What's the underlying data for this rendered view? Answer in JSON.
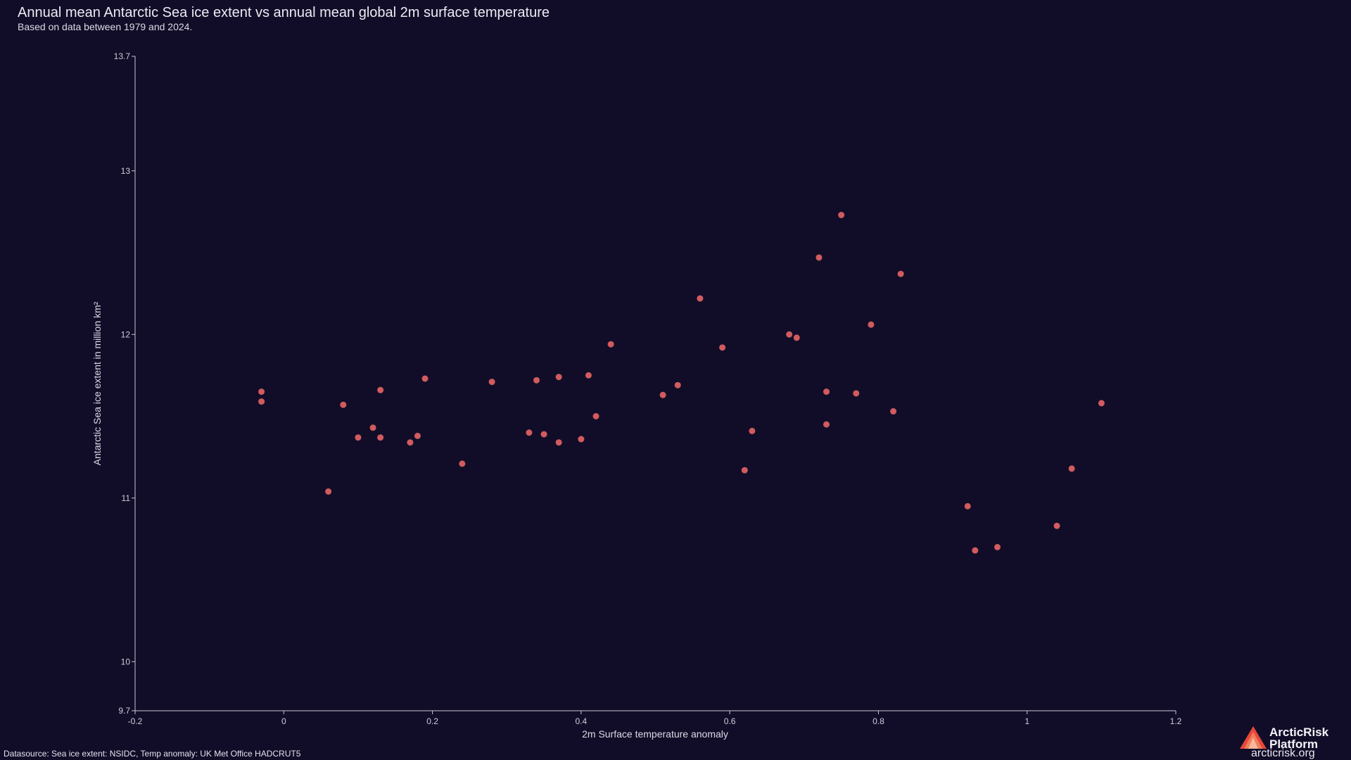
{
  "page": {
    "datasource": "Datasource: Sea ice extent: NSIDC, Temp anomaly: UK Met Office HADCRUT5",
    "brand": {
      "name_line1": "ArcticRisk",
      "name_line2": "Platform",
      "url": "arcticrisk.org",
      "logo_icon": "arcticrisk-triangle-logo-icon"
    },
    "colors": {
      "background": "#110d28",
      "point": "#d15b5e",
      "axis": "#c8c6d4"
    }
  },
  "chart_data": {
    "type": "scatter",
    "title": "Annual mean Antarctic Sea ice extent vs annual mean global 2m surface temperature",
    "subtitle": "Based on data between 1979 and 2024.",
    "xlabel": "2m Surface temperature anomaly",
    "ylabel": "Antarctic Sea ice extent in million km²",
    "xlim": [
      -0.2,
      1.2
    ],
    "ylim": [
      9.7,
      13.7
    ],
    "x_ticks": [
      -0.2,
      0,
      0.2,
      0.4,
      0.6,
      0.8,
      1,
      1.2
    ],
    "y_ticks": [
      9.7,
      10,
      11,
      12,
      13,
      13.7
    ],
    "grid": false,
    "legend": "none",
    "points": [
      {
        "x": -0.03,
        "y": 11.65
      },
      {
        "x": -0.03,
        "y": 11.59
      },
      {
        "x": 0.06,
        "y": 11.04
      },
      {
        "x": 0.08,
        "y": 11.57
      },
      {
        "x": 0.1,
        "y": 11.37
      },
      {
        "x": 0.12,
        "y": 11.43
      },
      {
        "x": 0.13,
        "y": 11.66
      },
      {
        "x": 0.13,
        "y": 11.37
      },
      {
        "x": 0.17,
        "y": 11.34
      },
      {
        "x": 0.18,
        "y": 11.38
      },
      {
        "x": 0.19,
        "y": 11.73
      },
      {
        "x": 0.24,
        "y": 11.21
      },
      {
        "x": 0.28,
        "y": 11.71
      },
      {
        "x": 0.33,
        "y": 11.4
      },
      {
        "x": 0.34,
        "y": 11.72
      },
      {
        "x": 0.35,
        "y": 11.39
      },
      {
        "x": 0.37,
        "y": 11.74
      },
      {
        "x": 0.37,
        "y": 11.34
      },
      {
        "x": 0.4,
        "y": 11.36
      },
      {
        "x": 0.41,
        "y": 11.75
      },
      {
        "x": 0.42,
        "y": 11.5
      },
      {
        "x": 0.44,
        "y": 11.94
      },
      {
        "x": 0.51,
        "y": 11.63
      },
      {
        "x": 0.53,
        "y": 11.69
      },
      {
        "x": 0.56,
        "y": 12.22
      },
      {
        "x": 0.59,
        "y": 11.92
      },
      {
        "x": 0.62,
        "y": 11.17
      },
      {
        "x": 0.63,
        "y": 11.41
      },
      {
        "x": 0.68,
        "y": 12.0
      },
      {
        "x": 0.69,
        "y": 11.98
      },
      {
        "x": 0.72,
        "y": 12.47
      },
      {
        "x": 0.73,
        "y": 11.65
      },
      {
        "x": 0.73,
        "y": 11.45
      },
      {
        "x": 0.75,
        "y": 12.73
      },
      {
        "x": 0.77,
        "y": 11.64
      },
      {
        "x": 0.79,
        "y": 12.06
      },
      {
        "x": 0.82,
        "y": 11.53
      },
      {
        "x": 0.83,
        "y": 12.37
      },
      {
        "x": 0.92,
        "y": 10.95
      },
      {
        "x": 0.93,
        "y": 10.68
      },
      {
        "x": 0.96,
        "y": 10.7
      },
      {
        "x": 1.04,
        "y": 10.83
      },
      {
        "x": 1.06,
        "y": 11.18
      },
      {
        "x": 1.1,
        "y": 11.58
      }
    ]
  }
}
